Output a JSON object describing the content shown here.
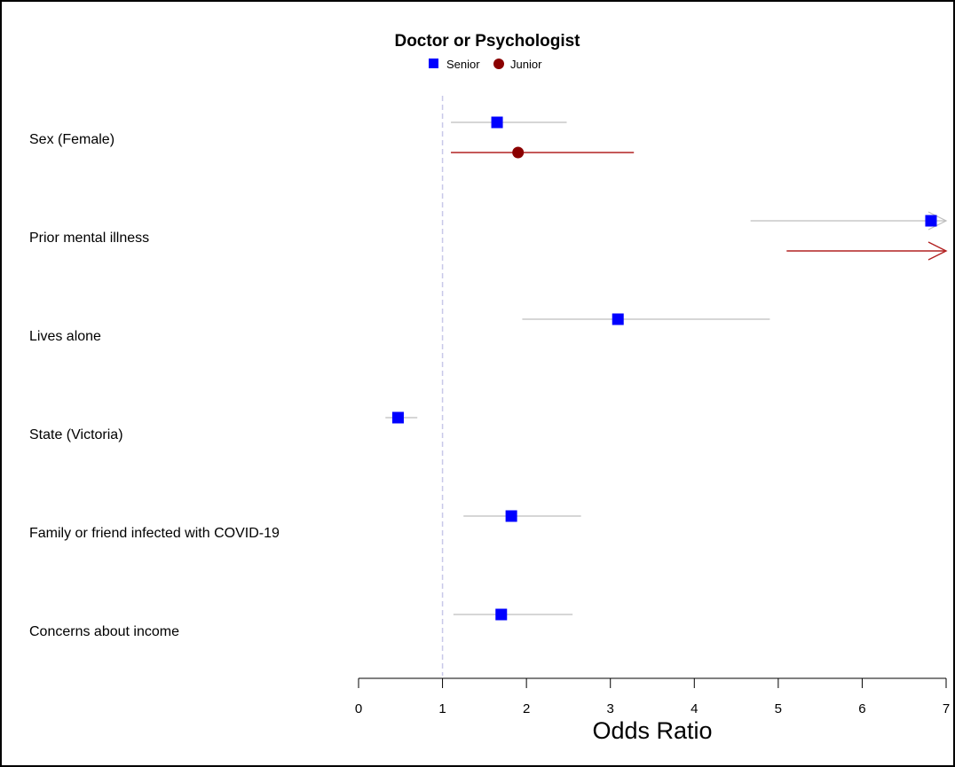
{
  "chart_data": {
    "type": "forest",
    "title": "Doctor or Psychologist",
    "xlabel": "Odds Ratio",
    "xlim": [
      0,
      7
    ],
    "x_ticks": [
      "0",
      "1",
      "2",
      "3",
      "4",
      "5",
      "6",
      "7"
    ],
    "reference_line": 1,
    "legend": {
      "placement": "top-center",
      "entries": [
        {
          "name": "Senior",
          "marker": "square",
          "color": "#0000ff"
        },
        {
          "name": "Junior",
          "marker": "circle",
          "color": "#8b0000"
        }
      ]
    },
    "colors": {
      "senior_marker": "#0000ff",
      "junior_marker": "#8b0000",
      "senior_ci": "#bebebe",
      "junior_ci": "#b22222",
      "reference_line": "#c8c8e8"
    },
    "rows": [
      {
        "label": "Sex (Female)",
        "estimates": [
          {
            "series": "Senior",
            "or": 1.65,
            "lower": 1.1,
            "upper": 2.48,
            "arrow": false
          },
          {
            "series": "Junior",
            "or": 1.9,
            "lower": 1.1,
            "upper": 3.28,
            "arrow": false
          }
        ]
      },
      {
        "label": "Prior mental illness",
        "estimates": [
          {
            "series": "Senior",
            "or": 6.82,
            "lower": 4.67,
            "upper": 7,
            "arrow": true
          },
          {
            "series": "Junior",
            "or": null,
            "lower": 5.1,
            "upper": 7,
            "arrow": true
          }
        ]
      },
      {
        "label": "Lives alone",
        "estimates": [
          {
            "series": "Senior",
            "or": 3.09,
            "lower": 1.95,
            "upper": 4.9,
            "arrow": false
          }
        ]
      },
      {
        "label": "State (Victoria)",
        "estimates": [
          {
            "series": "Senior",
            "or": 0.47,
            "lower": 0.32,
            "upper": 0.7,
            "arrow": false
          }
        ]
      },
      {
        "label": "Family or friend infected with COVID-19",
        "estimates": [
          {
            "series": "Senior",
            "or": 1.82,
            "lower": 1.25,
            "upper": 2.65,
            "arrow": false
          }
        ]
      },
      {
        "label": "Concerns about income",
        "estimates": [
          {
            "series": "Senior",
            "or": 1.7,
            "lower": 1.13,
            "upper": 2.55,
            "arrow": false
          }
        ]
      }
    ]
  }
}
